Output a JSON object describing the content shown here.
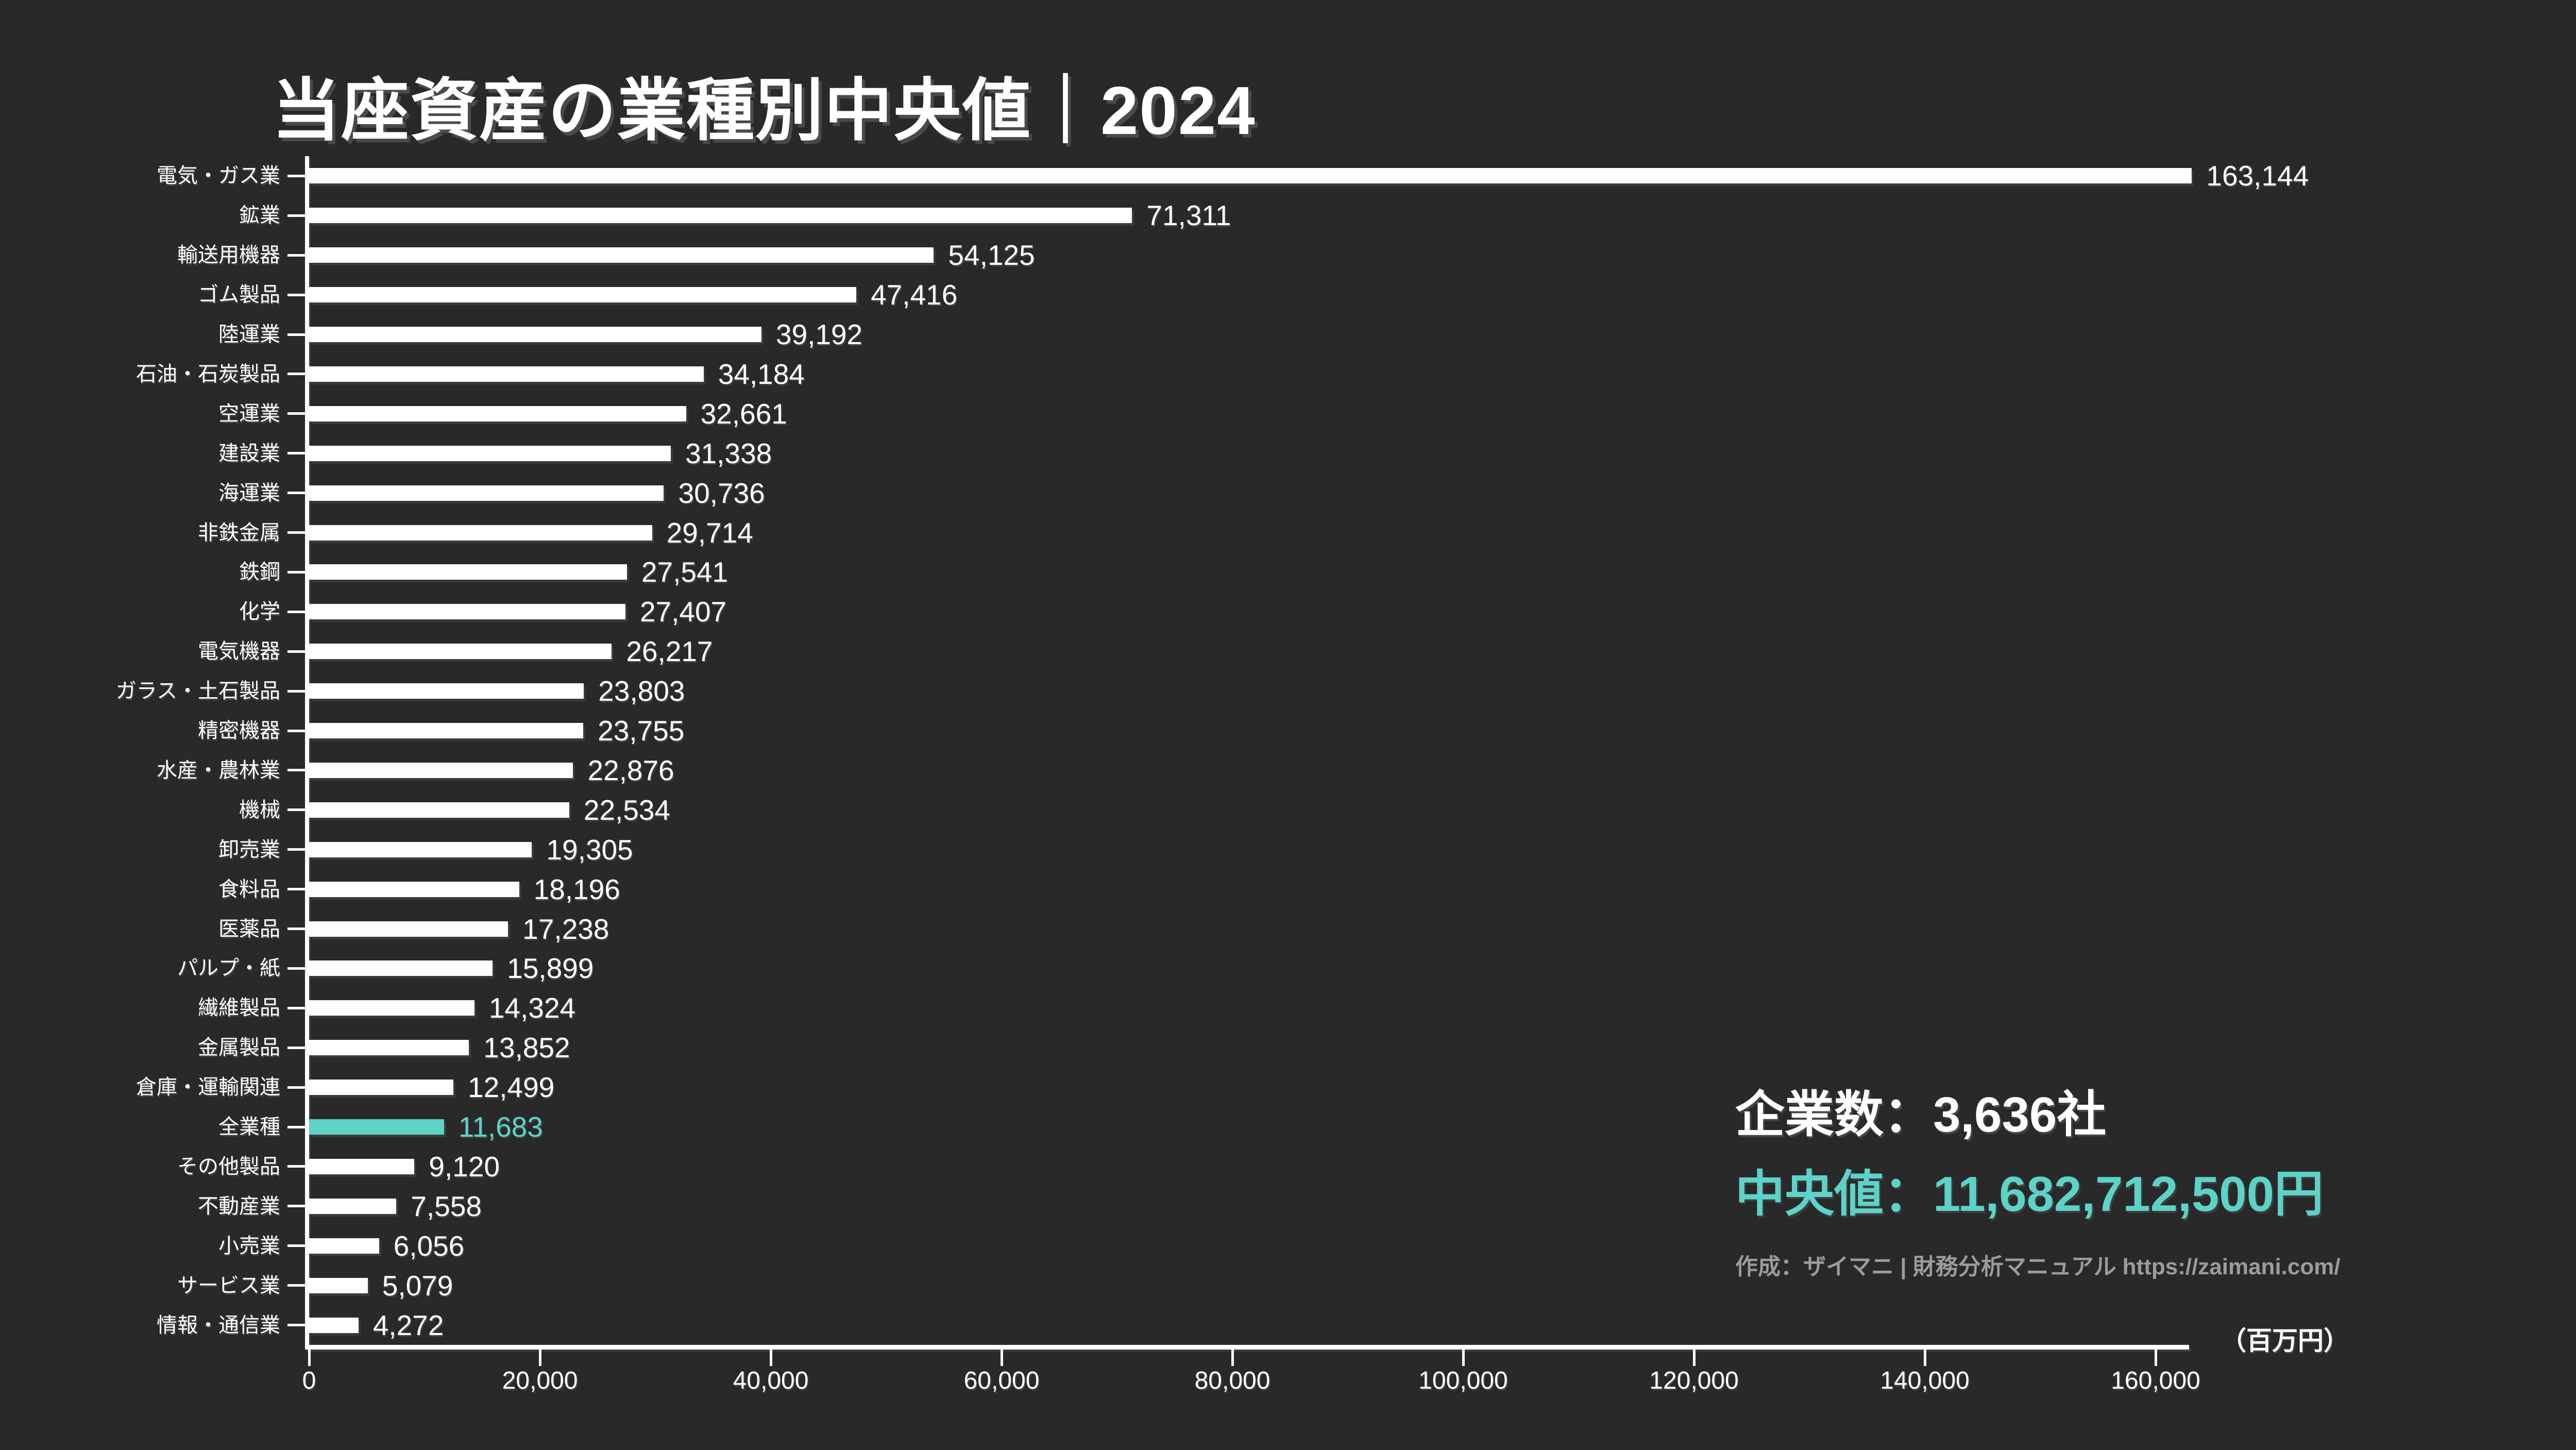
{
  "title": "当座資産の業種別中央値｜2024",
  "colors": {
    "background": "#292929",
    "bar": "#FFFFFF",
    "highlight": "#5DD3C8",
    "text": "#FFFFFF",
    "muted_text": "#9C9C9C"
  },
  "chart_data": {
    "type": "bar",
    "orientation": "horizontal",
    "title": "当座資産の業種別中央値｜2024",
    "xlabel": "",
    "ylabel": "",
    "unit_label": "（百万円）",
    "grid": false,
    "legend": false,
    "xlim": [
      0,
      168000
    ],
    "x_ticks": [
      0,
      20000,
      40000,
      60000,
      80000,
      100000,
      120000,
      140000,
      160000
    ],
    "categories": [
      "電気・ガス業",
      "鉱業",
      "輸送用機器",
      "ゴム製品",
      "陸運業",
      "石油・石炭製品",
      "空運業",
      "建設業",
      "海運業",
      "非鉄金属",
      "鉄鋼",
      "化学",
      "電気機器",
      "ガラス・土石製品",
      "精密機器",
      "水産・農林業",
      "機械",
      "卸売業",
      "食料品",
      "医薬品",
      "パルプ・紙",
      "繊維製品",
      "金属製品",
      "倉庫・運輸関連",
      "全業種",
      "その他製品",
      "不動産業",
      "小売業",
      "サービス業",
      "情報・通信業"
    ],
    "values": [
      163144,
      71311,
      54125,
      47416,
      39192,
      34184,
      32661,
      31338,
      30736,
      29714,
      27541,
      27407,
      26217,
      23803,
      23755,
      22876,
      22534,
      19305,
      18196,
      17238,
      15899,
      14324,
      13852,
      12499,
      11683,
      9120,
      7558,
      6056,
      5079,
      4272
    ],
    "highlight_index": 24,
    "highlight_category": "全業種"
  },
  "stats": {
    "companies": "企業数：3,636社",
    "median": "中央値：11,682,712,500円",
    "attribution": "作成：ザイマニ | 財務分析マニュアル https://zaimani.com/"
  }
}
